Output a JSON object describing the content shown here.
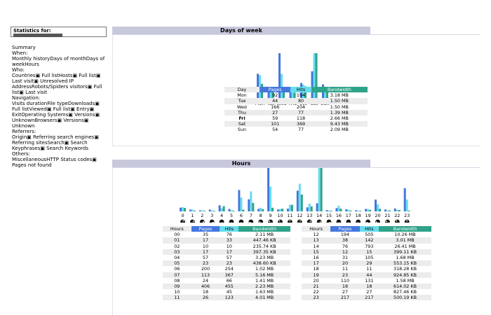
{
  "sidebar": {
    "stats_label": "Statistics for:",
    "items": [
      {
        "label": "Summary",
        "type": "link"
      },
      {
        "label": "When:",
        "type": "hdr"
      },
      {
        "label": "Monthly history",
        "type": "link"
      },
      {
        "label": "Days of month",
        "type": "link"
      },
      {
        "label": "Days of week",
        "type": "link"
      },
      {
        "label": "Hours",
        "type": "link"
      },
      {
        "label": "Who:",
        "type": "hdr"
      },
      {
        "label": "Countries",
        "type": "link"
      },
      {
        "label": "▣ Full list",
        "type": "sub"
      },
      {
        "label": "Hosts",
        "type": "link"
      },
      {
        "label": "▣ Full list",
        "type": "sub"
      },
      {
        "label": "▣ Last visit",
        "type": "sub"
      },
      {
        "label": "▣ Unresolved IP Address",
        "type": "sub"
      },
      {
        "label": "Robots/Spiders visitors",
        "type": "link"
      },
      {
        "label": "▣ Full list",
        "type": "sub"
      },
      {
        "label": "▣ Last visit",
        "type": "sub"
      },
      {
        "label": "Navigation:",
        "type": "hdr"
      },
      {
        "label": "Visits duration",
        "type": "link"
      },
      {
        "label": "File type",
        "type": "link"
      },
      {
        "label": "Downloads",
        "type": "link"
      },
      {
        "label": "▣ Full list",
        "type": "sub"
      },
      {
        "label": "Viewed",
        "type": "link"
      },
      {
        "label": "▣ Full list",
        "type": "sub"
      },
      {
        "label": "▣ Entry",
        "type": "sub"
      },
      {
        "label": "▣ Exit",
        "type": "sub"
      },
      {
        "label": "Operating Systems",
        "type": "link"
      },
      {
        "label": "▣ Versions",
        "type": "sub"
      },
      {
        "label": "▣ Unknown",
        "type": "sub"
      },
      {
        "label": "Browsers",
        "type": "link"
      },
      {
        "label": "▣ Versions",
        "type": "sub"
      },
      {
        "label": "▣ Unknown",
        "type": "sub"
      },
      {
        "label": "Referrers:",
        "type": "hdr"
      },
      {
        "label": "Origin",
        "type": "link"
      },
      {
        "label": "▣ Referring search engines",
        "type": "sub"
      },
      {
        "label": "▣ Referring sites",
        "type": "sub"
      },
      {
        "label": "Search",
        "type": "link"
      },
      {
        "label": "▣ Search Keyphrases",
        "type": "sub"
      },
      {
        "label": "▣ Search Keywords",
        "type": "sub"
      },
      {
        "label": "Others:",
        "type": "hdr"
      },
      {
        "label": "Miscellaneous",
        "type": "link"
      },
      {
        "label": "HTTP Status codes",
        "type": "link"
      },
      {
        "label": "▣ Pages not found",
        "type": "sub"
      }
    ]
  },
  "days_section": {
    "title": "Days of week",
    "headers": [
      "Day",
      "Pages",
      "Hits",
      "Bandwidth"
    ],
    "rows": [
      [
        "Mon",
        "92",
        "194",
        "3.18 MB"
      ],
      [
        "Tue",
        "44",
        "80",
        "1.50 MB"
      ],
      [
        "Wed",
        "166",
        "204",
        "1.50 MB"
      ],
      [
        "Thu",
        "27",
        "77",
        "1.39 MB"
      ],
      [
        "Fri",
        "59",
        "118",
        "2.66 MB"
      ],
      [
        "Sat",
        "101",
        "369",
        "9.43 MB"
      ],
      [
        "Sun",
        "54",
        "77",
        "2.09 MB"
      ]
    ],
    "highlight_day": "Fri"
  },
  "hours_section": {
    "title": "Hours",
    "headers": [
      "Hours",
      "Pages",
      "Hits",
      "Bandwidth"
    ],
    "left_rows": [
      [
        "00",
        "35",
        "76",
        "2.11 MB"
      ],
      [
        "01",
        "17",
        "33",
        "447.46 KB"
      ],
      [
        "02",
        "10",
        "10",
        "235.74 KB"
      ],
      [
        "03",
        "17",
        "17",
        "397.35 KB"
      ],
      [
        "04",
        "57",
        "57",
        "3.23 MB"
      ],
      [
        "05",
        "23",
        "23",
        "438.60 KB"
      ],
      [
        "06",
        "200",
        "254",
        "1.02 MB"
      ],
      [
        "07",
        "113",
        "367",
        "5.16 MB"
      ],
      [
        "08",
        "24",
        "66",
        "1.41 MB"
      ],
      [
        "09",
        "406",
        "455",
        "2.23 MB"
      ],
      [
        "10",
        "18",
        "45",
        "1.63 MB"
      ],
      [
        "11",
        "26",
        "123",
        "4.01 MB"
      ]
    ],
    "right_rows": [
      [
        "12",
        "194",
        "505",
        "10.26 MB"
      ],
      [
        "13",
        "38",
        "142",
        "3.01 MB"
      ],
      [
        "14",
        "76",
        "793",
        "26.41 MB"
      ],
      [
        "15",
        "12",
        "15",
        "399.11 KB"
      ],
      [
        "16",
        "31",
        "105",
        "1.68 MB"
      ],
      [
        "17",
        "20",
        "29",
        "553.15 KB"
      ],
      [
        "18",
        "11",
        "11",
        "318.28 KB"
      ],
      [
        "19",
        "23",
        "44",
        "924.85 KB"
      ],
      [
        "20",
        "110",
        "131",
        "1.58 MB"
      ],
      [
        "21",
        "18",
        "18",
        "614.02 KB"
      ],
      [
        "22",
        "27",
        "27",
        "827.46 KB"
      ],
      [
        "23",
        "217",
        "217",
        "500.19 KB"
      ]
    ]
  },
  "colors": {
    "pages": "#4477dd",
    "hits": "#66ddee",
    "bandwidth": "#2fa38a",
    "title_bar": "#c8c8dc"
  },
  "chart_data": [
    {
      "type": "bar",
      "categories": [
        "Mon",
        "Tue",
        "Wed",
        "Thu",
        "Fri",
        "Sat",
        "Sun"
      ],
      "series": [
        {
          "name": "Pages",
          "values": [
            92,
            44,
            166,
            27,
            59,
            101,
            54
          ]
        },
        {
          "name": "Hits",
          "values": [
            194,
            80,
            204,
            77,
            118,
            369,
            77
          ]
        },
        {
          "name": "Bandwidth",
          "values": [
            3.18,
            1.5,
            1.5,
            1.39,
            2.66,
            9.43,
            2.09
          ]
        }
      ]
    },
    {
      "type": "bar",
      "categories": [
        "0",
        "1",
        "2",
        "3",
        "4",
        "5",
        "6",
        "7",
        "8",
        "9",
        "10",
        "11",
        "12",
        "13",
        "14",
        "15",
        "16",
        "17",
        "18",
        "19",
        "20",
        "21",
        "22",
        "23"
      ],
      "series": [
        {
          "name": "Pages",
          "values": [
            35,
            17,
            10,
            17,
            57,
            23,
            200,
            113,
            24,
            406,
            18,
            26,
            194,
            38,
            76,
            12,
            31,
            20,
            11,
            23,
            110,
            18,
            27,
            217
          ]
        },
        {
          "name": "Hits",
          "values": [
            76,
            33,
            10,
            17,
            57,
            23,
            254,
            367,
            66,
            455,
            45,
            123,
            505,
            142,
            793,
            15,
            105,
            29,
            11,
            44,
            131,
            18,
            27,
            217
          ]
        },
        {
          "name": "Bandwidth",
          "values": [
            2.11,
            0.437,
            0.23,
            0.388,
            3.23,
            0.428,
            1.02,
            5.16,
            1.41,
            2.23,
            1.63,
            4.01,
            10.26,
            3.01,
            26.41,
            0.39,
            1.68,
            0.54,
            0.311,
            0.903,
            1.58,
            0.6,
            0.808,
            0.488
          ]
        }
      ]
    }
  ]
}
